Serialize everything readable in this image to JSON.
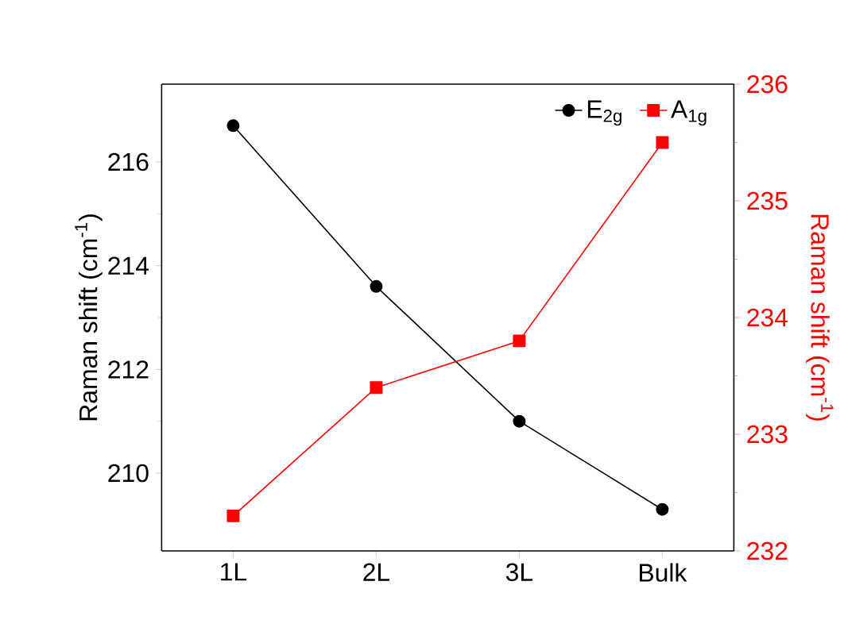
{
  "chart_data": {
    "type": "line",
    "categories": [
      "1L",
      "2L",
      "3L",
      "Bulk"
    ],
    "ylabel": "Raman shift (cm$^{-1}$)",
    "y2label": "Raman shift (cm$^{-1}$)",
    "ylim": [
      208.5,
      217.5
    ],
    "yticks": [
      210,
      212,
      214,
      216
    ],
    "y2lim": [
      232,
      236
    ],
    "y2ticks": [
      232,
      233,
      234,
      235,
      236
    ],
    "series": [
      {
        "name": "E$_{2g}$",
        "color": "#000000",
        "marker": "circle",
        "values": [
          216.7,
          213.6,
          211.0,
          209.3
        ]
      },
      {
        "name": "A$_{1g}$",
        "color": "#ff0000",
        "marker": "square",
        "axis": "y2",
        "values": [
          232.3,
          233.4,
          233.8,
          235.5
        ]
      }
    ],
    "legend": "top right",
    "grid": false
  }
}
